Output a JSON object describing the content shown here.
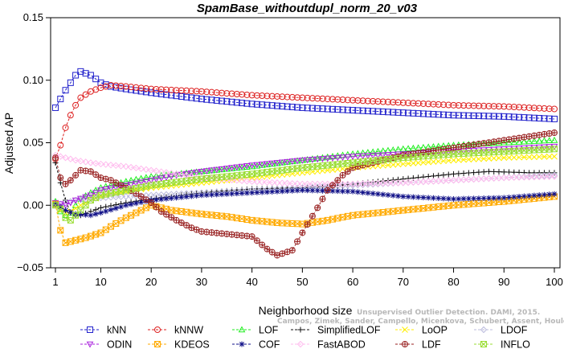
{
  "chart_data": {
    "type": "line",
    "title": "SpamBase_withoutdupl_norm_20_v03",
    "xlabel": "Neighborhood size",
    "ylabel": "Adjusted AP",
    "xlim": [
      1,
      100
    ],
    "ylim": [
      -0.05,
      0.15
    ],
    "xticks": [
      1,
      10,
      20,
      30,
      40,
      50,
      60,
      70,
      80,
      90,
      100
    ],
    "yticks": [
      -0.05,
      0.0,
      0.05,
      0.1,
      0.15
    ],
    "ytick_labels": [
      "−0.05",
      "0.00",
      "0.05",
      "0.10",
      "0.15"
    ],
    "grid": false,
    "legend_position": "bottom",
    "watermark": [
      "Unsupervised Outlier Detection. DAMI, 2015.",
      "Campos, Zimek, Sander, Campello, Micenkova, Schubert, Assent, Houle"
    ],
    "series": [
      {
        "name": "kNN",
        "color": "#2222cc",
        "marker": "square",
        "points": [
          [
            1,
            0.078
          ],
          [
            2,
            0.085
          ],
          [
            3,
            0.092
          ],
          [
            4,
            0.098
          ],
          [
            5,
            0.104
          ],
          [
            6,
            0.107
          ],
          [
            8,
            0.104
          ],
          [
            10,
            0.098
          ],
          [
            12,
            0.095
          ],
          [
            15,
            0.093
          ],
          [
            20,
            0.09
          ],
          [
            30,
            0.085
          ],
          [
            40,
            0.081
          ],
          [
            50,
            0.078
          ],
          [
            60,
            0.076
          ],
          [
            70,
            0.074
          ],
          [
            80,
            0.072
          ],
          [
            90,
            0.071
          ],
          [
            100,
            0.069
          ]
        ]
      },
      {
        "name": "kNNW",
        "color": "#dd2222",
        "marker": "circle",
        "points": [
          [
            1,
            0.037
          ],
          [
            2,
            0.048
          ],
          [
            3,
            0.062
          ],
          [
            4,
            0.072
          ],
          [
            5,
            0.08
          ],
          [
            6,
            0.086
          ],
          [
            8,
            0.091
          ],
          [
            10,
            0.094
          ],
          [
            12,
            0.096
          ],
          [
            15,
            0.095
          ],
          [
            20,
            0.093
          ],
          [
            30,
            0.091
          ],
          [
            40,
            0.088
          ],
          [
            50,
            0.086
          ],
          [
            60,
            0.084
          ],
          [
            70,
            0.082
          ],
          [
            80,
            0.08
          ],
          [
            90,
            0.079
          ],
          [
            100,
            0.077
          ]
        ]
      },
      {
        "name": "LOF",
        "color": "#22ee22",
        "marker": "triangle",
        "points": [
          [
            1,
            0.003
          ],
          [
            2,
            -0.005
          ],
          [
            3,
            -0.008
          ],
          [
            4,
            -0.006
          ],
          [
            5,
            0.0
          ],
          [
            6,
            0.005
          ],
          [
            8,
            0.01
          ],
          [
            10,
            0.014
          ],
          [
            15,
            0.019
          ],
          [
            20,
            0.023
          ],
          [
            30,
            0.027
          ],
          [
            40,
            0.031
          ],
          [
            50,
            0.036
          ],
          [
            60,
            0.041
          ],
          [
            70,
            0.045
          ],
          [
            80,
            0.048
          ],
          [
            90,
            0.05
          ],
          [
            100,
            0.052
          ]
        ]
      },
      {
        "name": "SimplifiedLOF",
        "color": "#111111",
        "marker": "plus",
        "points": [
          [
            1,
            0.034
          ],
          [
            2,
            0.018
          ],
          [
            3,
            0.004
          ],
          [
            4,
            -0.006
          ],
          [
            5,
            -0.008
          ],
          [
            6,
            -0.008
          ],
          [
            8,
            -0.005
          ],
          [
            10,
            -0.002
          ],
          [
            15,
            0.002
          ],
          [
            20,
            0.005
          ],
          [
            30,
            0.01
          ],
          [
            40,
            0.013
          ],
          [
            50,
            0.014
          ],
          [
            55,
            0.015
          ],
          [
            60,
            0.017
          ],
          [
            70,
            0.021
          ],
          [
            80,
            0.025
          ],
          [
            87,
            0.027
          ],
          [
            95,
            0.026
          ],
          [
            100,
            0.026
          ]
        ]
      },
      {
        "name": "LoOP",
        "color": "#ffee00",
        "marker": "cross",
        "points": [
          [
            1,
            0.0
          ],
          [
            2,
            -0.004
          ],
          [
            3,
            -0.006
          ],
          [
            4,
            -0.005
          ],
          [
            6,
            0.0
          ],
          [
            8,
            0.004
          ],
          [
            10,
            0.007
          ],
          [
            15,
            0.011
          ],
          [
            20,
            0.014
          ],
          [
            30,
            0.018
          ],
          [
            40,
            0.022
          ],
          [
            50,
            0.026
          ],
          [
            60,
            0.03
          ],
          [
            70,
            0.033
          ],
          [
            80,
            0.036
          ],
          [
            90,
            0.038
          ],
          [
            100,
            0.039
          ]
        ]
      },
      {
        "name": "LDOF",
        "color": "#bbbbdd",
        "marker": "diamond",
        "points": [
          [
            1,
            0.0
          ],
          [
            3,
            0.002
          ],
          [
            5,
            0.004
          ],
          [
            10,
            0.006
          ],
          [
            20,
            0.008
          ],
          [
            30,
            0.01
          ],
          [
            40,
            0.012
          ],
          [
            50,
            0.014
          ],
          [
            60,
            0.016
          ],
          [
            70,
            0.018
          ],
          [
            80,
            0.02
          ],
          [
            90,
            0.022
          ],
          [
            100,
            0.024
          ]
        ]
      },
      {
        "name": "ODIN",
        "color": "#aa22dd",
        "marker": "triangle-down",
        "points": [
          [
            1,
            0.002
          ],
          [
            3,
            0.0
          ],
          [
            5,
            0.004
          ],
          [
            8,
            0.008
          ],
          [
            10,
            0.012
          ],
          [
            15,
            0.016
          ],
          [
            20,
            0.02
          ],
          [
            25,
            0.024
          ],
          [
            30,
            0.027
          ],
          [
            40,
            0.032
          ],
          [
            50,
            0.036
          ],
          [
            60,
            0.039
          ],
          [
            70,
            0.041
          ],
          [
            80,
            0.043
          ],
          [
            90,
            0.045
          ],
          [
            100,
            0.047
          ]
        ]
      },
      {
        "name": "KDEOS",
        "color": "#ffaa00",
        "marker": "square-x",
        "points": [
          [
            1,
            0.001
          ],
          [
            2,
            -0.02
          ],
          [
            3,
            -0.03
          ],
          [
            5,
            -0.028
          ],
          [
            7,
            -0.026
          ],
          [
            10,
            -0.022
          ],
          [
            12,
            -0.017
          ],
          [
            15,
            -0.01
          ],
          [
            18,
            -0.004
          ],
          [
            20,
            0.0
          ],
          [
            24,
            -0.004
          ],
          [
            30,
            -0.007
          ],
          [
            35,
            -0.009
          ],
          [
            40,
            -0.012
          ],
          [
            45,
            -0.014
          ],
          [
            50,
            -0.015
          ],
          [
            55,
            -0.012
          ],
          [
            60,
            -0.008
          ],
          [
            70,
            -0.004
          ],
          [
            80,
            0.0
          ],
          [
            90,
            0.003
          ],
          [
            100,
            0.007
          ]
        ]
      },
      {
        "name": "COF",
        "color": "#111188",
        "marker": "star",
        "points": [
          [
            1,
            0.001
          ],
          [
            3,
            -0.004
          ],
          [
            5,
            -0.007
          ],
          [
            8,
            -0.008
          ],
          [
            10,
            -0.006
          ],
          [
            15,
            0.0
          ],
          [
            20,
            0.004
          ],
          [
            30,
            0.008
          ],
          [
            40,
            0.01
          ],
          [
            50,
            0.012
          ],
          [
            60,
            0.011
          ],
          [
            65,
            0.009
          ],
          [
            70,
            0.007
          ],
          [
            80,
            0.005
          ],
          [
            90,
            0.006
          ],
          [
            100,
            0.009
          ]
        ]
      },
      {
        "name": "FastABOD",
        "color": "#ffbbee",
        "marker": "diamond",
        "points": [
          [
            1,
            0.04
          ],
          [
            3,
            0.038
          ],
          [
            5,
            0.036
          ],
          [
            8,
            0.034
          ],
          [
            10,
            0.033
          ],
          [
            15,
            0.031
          ],
          [
            20,
            0.028
          ],
          [
            30,
            0.022
          ],
          [
            40,
            0.019
          ],
          [
            50,
            0.017
          ],
          [
            60,
            0.017
          ],
          [
            70,
            0.018
          ],
          [
            80,
            0.02
          ],
          [
            90,
            0.022
          ],
          [
            100,
            0.023
          ]
        ]
      },
      {
        "name": "LDF",
        "color": "#992222",
        "marker": "circle-plus",
        "points": [
          [
            1,
            0.038
          ],
          [
            2,
            0.022
          ],
          [
            3,
            0.017
          ],
          [
            4,
            0.02
          ],
          [
            5,
            0.024
          ],
          [
            6,
            0.028
          ],
          [
            8,
            0.027
          ],
          [
            10,
            0.022
          ],
          [
            12,
            0.02
          ],
          [
            15,
            0.014
          ],
          [
            18,
            0.007
          ],
          [
            20,
            0.002
          ],
          [
            22,
            -0.005
          ],
          [
            25,
            -0.012
          ],
          [
            28,
            -0.018
          ],
          [
            30,
            -0.021
          ],
          [
            35,
            -0.023
          ],
          [
            40,
            -0.025
          ],
          [
            43,
            -0.035
          ],
          [
            45,
            -0.04
          ],
          [
            48,
            -0.036
          ],
          [
            50,
            -0.022
          ],
          [
            53,
            -0.002
          ],
          [
            55,
            0.012
          ],
          [
            58,
            0.024
          ],
          [
            60,
            0.03
          ],
          [
            65,
            0.035
          ],
          [
            70,
            0.04
          ],
          [
            80,
            0.046
          ],
          [
            90,
            0.052
          ],
          [
            100,
            0.058
          ]
        ]
      },
      {
        "name": "INFLO",
        "color": "#99dd33",
        "marker": "square-x",
        "points": [
          [
            1,
            0.0
          ],
          [
            2,
            -0.003
          ],
          [
            3,
            -0.01
          ],
          [
            4,
            -0.012
          ],
          [
            5,
            -0.008
          ],
          [
            6,
            -0.004
          ],
          [
            8,
            0.004
          ],
          [
            10,
            0.008
          ],
          [
            15,
            0.012
          ],
          [
            20,
            0.016
          ],
          [
            30,
            0.021
          ],
          [
            40,
            0.025
          ],
          [
            50,
            0.03
          ],
          [
            60,
            0.034
          ],
          [
            70,
            0.038
          ],
          [
            80,
            0.041
          ],
          [
            90,
            0.043
          ],
          [
            100,
            0.045
          ]
        ]
      }
    ]
  }
}
